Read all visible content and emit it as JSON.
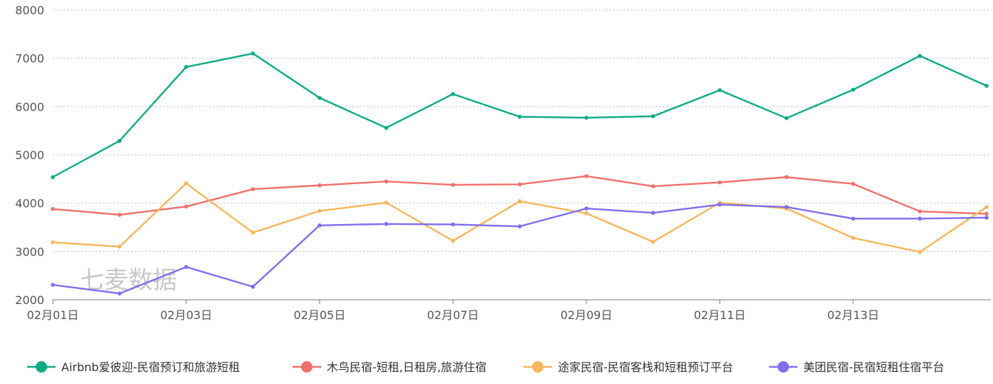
{
  "chart_data": {
    "type": "line",
    "title": "",
    "xlabel": "",
    "ylabel": "",
    "ylim": [
      2000,
      8000
    ],
    "yticks": [
      2000,
      3000,
      4000,
      5000,
      6000,
      7000,
      8000
    ],
    "grid": "horizontal dotted",
    "legend_position": "bottom",
    "x": [
      "02月01日",
      "02月02日",
      "02月03日",
      "02月04日",
      "02月05日",
      "02月06日",
      "02月07日",
      "02月08日",
      "02月09日",
      "02月10日",
      "02月11日",
      "02月12日",
      "02月13日",
      "02月14日",
      "02月15日"
    ],
    "xtick_labels": [
      "02月01日",
      "02月03日",
      "02月05日",
      "02月07日",
      "02月09日",
      "02月11日",
      "02月13日"
    ],
    "watermark": "七麦数据",
    "series": [
      {
        "name": "Airbnb爱彼迎-民宿预订和旅游短租",
        "color": "#0aab84",
        "values": [
          4540,
          5290,
          6820,
          7100,
          6180,
          5560,
          6260,
          5790,
          5770,
          5800,
          6340,
          5760,
          6350,
          7050,
          6430
        ]
      },
      {
        "name": "木鸟民宿-短租,日租房,旅游住宿",
        "color": "#f0706a",
        "values": [
          3880,
          3760,
          3930,
          4290,
          4370,
          4450,
          4380,
          4390,
          4560,
          4350,
          4430,
          4540,
          4400,
          3830,
          3780
        ]
      },
      {
        "name": "途家民宿-民宿客栈和短租预订平台",
        "color": "#f8b55c",
        "values": [
          3190,
          3100,
          4410,
          3390,
          3840,
          4010,
          3220,
          4040,
          3790,
          3200,
          4010,
          3890,
          3280,
          2990,
          3920
        ]
      },
      {
        "name": "美团民宿-民宿短租住宿平台",
        "color": "#7e6ef0",
        "values": [
          2310,
          2130,
          2680,
          2270,
          3540,
          3570,
          3560,
          3520,
          3890,
          3800,
          3970,
          3920,
          3680,
          3680,
          3700
        ]
      }
    ]
  }
}
